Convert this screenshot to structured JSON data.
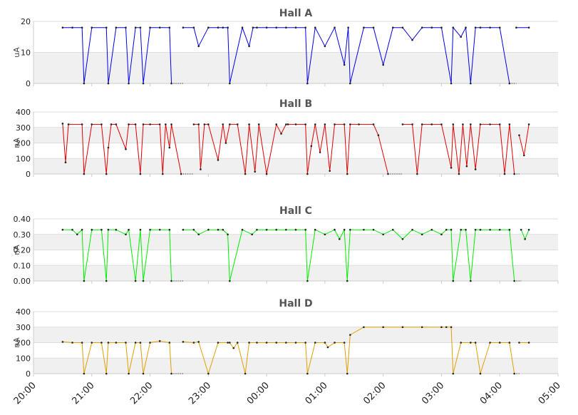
{
  "time_axis": {
    "ticks": [
      "20:00",
      "21:00",
      "22:00",
      "23:00",
      "00:00",
      "01:00",
      "02:00",
      "03:00",
      "04:00",
      "05:00"
    ],
    "start": "20:00",
    "end": "05:00"
  },
  "chart_data": [
    {
      "type": "line",
      "title": "Hall A",
      "ylabel": "uA",
      "ylim": [
        0,
        20
      ],
      "yticks": [
        "0",
        "10",
        "20"
      ],
      "grid": "horizontal bands",
      "series": [
        {
          "color": "#0000ee",
          "x": [
            "20:30",
            "20:40",
            "20:50",
            "20:52",
            "21:00",
            "21:15",
            "21:17",
            "21:25",
            "21:35",
            "21:38",
            "21:45",
            "21:50",
            "21:53",
            "22:00",
            "22:10",
            "22:20",
            "22:22",
            "22:32",
            "22:34",
            "22:45",
            "22:50",
            "23:00",
            "23:10",
            "23:15",
            "23:20",
            "23:22",
            "23:35",
            "23:42",
            "23:46",
            "23:50",
            "00:00",
            "00:10",
            "00:20",
            "00:30",
            "00:40",
            "00:42",
            "00:50",
            "01:00",
            "01:10",
            "01:20",
            "01:24",
            "01:26",
            "01:40",
            "01:50",
            "02:00",
            "02:10",
            "02:20",
            "02:30",
            "02:40",
            "02:50",
            "03:00",
            "03:10",
            "03:12",
            "03:20",
            "03:25",
            "03:30",
            "03:35",
            "03:40",
            "03:50",
            "04:00",
            "04:10",
            "04:15",
            "04:17",
            "04:30"
          ],
          "values": [
            18,
            18,
            18,
            0,
            18,
            18,
            0,
            18,
            18,
            0,
            18,
            18,
            0,
            18,
            18,
            18,
            0,
            null,
            18,
            18,
            12,
            18,
            18,
            18,
            18,
            0,
            18,
            12,
            18,
            18,
            18,
            18,
            18,
            18,
            18,
            0,
            18,
            12,
            18,
            6,
            18,
            0,
            18,
            18,
            6,
            18,
            18,
            14,
            18,
            18,
            18,
            0,
            18,
            15,
            18,
            0,
            18,
            18,
            18,
            18,
            0,
            null,
            18,
            18
          ]
        }
      ]
    },
    {
      "type": "line",
      "title": "Hall B",
      "ylabel": "nA",
      "ylim": [
        0,
        400
      ],
      "yticks": [
        "0",
        "100",
        "200",
        "300",
        "400"
      ],
      "grid": "horizontal bands",
      "series": [
        {
          "color": "#e00000",
          "x": [
            "20:30",
            "20:33",
            "20:36",
            "20:50",
            "20:52",
            "21:00",
            "21:10",
            "21:15",
            "21:17",
            "21:20",
            "21:25",
            "21:35",
            "21:38",
            "21:45",
            "21:50",
            "21:53",
            "22:00",
            "22:10",
            "22:13",
            "22:16",
            "22:20",
            "22:22",
            "22:32",
            "22:34",
            "22:45",
            "22:50",
            "22:52",
            "22:56",
            "23:00",
            "23:10",
            "23:15",
            "23:18",
            "23:22",
            "23:30",
            "23:38",
            "23:42",
            "23:48",
            "23:52",
            "00:00",
            "00:10",
            "00:15",
            "00:20",
            "00:22",
            "00:30",
            "00:40",
            "00:42",
            "00:46",
            "00:50",
            "00:55",
            "01:00",
            "01:05",
            "01:10",
            "01:20",
            "01:23",
            "01:26",
            "01:35",
            "01:50",
            "01:55",
            "02:05",
            "02:10",
            "02:20",
            "02:30",
            "02:35",
            "02:40",
            "02:50",
            "03:00",
            "03:10",
            "03:12",
            "03:18",
            "03:22",
            "03:26",
            "03:30",
            "03:35",
            "03:40",
            "03:50",
            "04:00",
            "04:05",
            "04:10",
            "04:15",
            "04:17",
            "04:20",
            "04:25",
            "04:30"
          ],
          "values": [
            325,
            75,
            320,
            320,
            0,
            320,
            320,
            0,
            170,
            320,
            320,
            160,
            320,
            320,
            0,
            320,
            320,
            320,
            0,
            320,
            170,
            320,
            0,
            null,
            320,
            320,
            30,
            320,
            320,
            90,
            320,
            200,
            320,
            320,
            0,
            320,
            15,
            320,
            0,
            320,
            260,
            320,
            320,
            320,
            320,
            0,
            180,
            320,
            140,
            320,
            20,
            320,
            320,
            0,
            320,
            320,
            320,
            250,
            0,
            null,
            320,
            320,
            0,
            320,
            320,
            320,
            40,
            320,
            0,
            320,
            50,
            320,
            30,
            320,
            320,
            320,
            0,
            320,
            0,
            null,
            250,
            120,
            320
          ]
        }
      ]
    },
    {
      "type": "line",
      "title": "Hall C",
      "ylabel": "nA",
      "ylim": [
        0,
        0.4
      ],
      "yticks": [
        "0.00",
        "0.10",
        "0.20",
        "0.30",
        "0.40"
      ],
      "grid": "horizontal bands",
      "series": [
        {
          "color": "#00ee00",
          "x": [
            "20:30",
            "20:40",
            "20:45",
            "20:50",
            "20:52",
            "21:00",
            "21:10",
            "21:15",
            "21:17",
            "21:25",
            "21:35",
            "21:38",
            "21:45",
            "21:50",
            "21:53",
            "22:00",
            "22:10",
            "22:20",
            "22:22",
            "22:32",
            "22:34",
            "22:45",
            "22:50",
            "23:00",
            "23:10",
            "23:15",
            "23:20",
            "23:22",
            "23:35",
            "23:45",
            "23:50",
            "00:00",
            "00:10",
            "00:20",
            "00:30",
            "00:40",
            "00:42",
            "00:50",
            "01:00",
            "01:10",
            "01:15",
            "01:20",
            "01:23",
            "01:26",
            "01:40",
            "01:50",
            "02:00",
            "02:10",
            "02:20",
            "02:30",
            "02:40",
            "02:50",
            "03:00",
            "03:05",
            "03:10",
            "03:12",
            "03:20",
            "03:25",
            "03:30",
            "03:35",
            "03:40",
            "03:50",
            "04:00",
            "04:10",
            "04:15",
            "04:17",
            "04:22",
            "04:26",
            "04:30"
          ],
          "values": [
            0.33,
            0.33,
            0.3,
            0.33,
            0,
            0.33,
            0.33,
            0,
            0.33,
            0.33,
            0.3,
            0.33,
            0,
            0.33,
            0,
            0.33,
            0.33,
            0.33,
            0,
            null,
            0.33,
            0.33,
            0.3,
            0.33,
            0.33,
            0.33,
            0.3,
            0,
            0.33,
            0.3,
            0.33,
            0.33,
            0.33,
            0.33,
            0.33,
            0.33,
            0,
            0.33,
            0.3,
            0.33,
            0.27,
            0.33,
            0,
            0.33,
            0.33,
            0.33,
            0.3,
            0.33,
            0.27,
            0.33,
            0.3,
            0.33,
            0.3,
            0.33,
            0.33,
            0,
            0.33,
            0.33,
            0,
            0.33,
            0.33,
            0.33,
            0.33,
            0.33,
            0,
            null,
            0.33,
            0.27,
            0.33
          ]
        }
      ]
    },
    {
      "type": "line",
      "title": "Hall D",
      "ylabel": "nA",
      "ylim": [
        0,
        400
      ],
      "yticks": [
        "0",
        "100",
        "200",
        "300",
        "400"
      ],
      "grid": "horizontal bands",
      "series": [
        {
          "color": "#e0a000",
          "x": [
            "20:30",
            "20:40",
            "20:50",
            "20:52",
            "21:00",
            "21:10",
            "21:15",
            "21:17",
            "21:25",
            "21:35",
            "21:38",
            "21:45",
            "21:50",
            "21:53",
            "22:00",
            "22:10",
            "22:20",
            "22:22",
            "22:32",
            "22:34",
            "22:45",
            "22:50",
            "23:00",
            "23:10",
            "23:20",
            "23:22",
            "23:26",
            "23:30",
            "23:38",
            "23:42",
            "23:50",
            "00:00",
            "00:10",
            "00:20",
            "00:30",
            "00:40",
            "00:42",
            "00:50",
            "01:00",
            "01:03",
            "01:10",
            "01:20",
            "01:23",
            "01:26",
            "01:40",
            "02:00",
            "02:20",
            "02:40",
            "03:00",
            "03:05",
            "03:10",
            "03:12",
            "03:20",
            "03:30",
            "03:35",
            "03:40",
            "03:50",
            "04:00",
            "04:10",
            "04:15",
            "04:17",
            "04:20",
            "04:30"
          ],
          "values": [
            205,
            200,
            200,
            0,
            200,
            200,
            0,
            200,
            200,
            200,
            0,
            200,
            200,
            0,
            200,
            210,
            200,
            0,
            null,
            205,
            200,
            205,
            0,
            200,
            200,
            200,
            165,
            200,
            0,
            200,
            200,
            200,
            200,
            200,
            200,
            200,
            0,
            200,
            200,
            170,
            200,
            200,
            0,
            250,
            300,
            300,
            300,
            300,
            300,
            300,
            300,
            0,
            200,
            200,
            200,
            0,
            200,
            200,
            200,
            0,
            null,
            200,
            200
          ]
        }
      ]
    }
  ]
}
